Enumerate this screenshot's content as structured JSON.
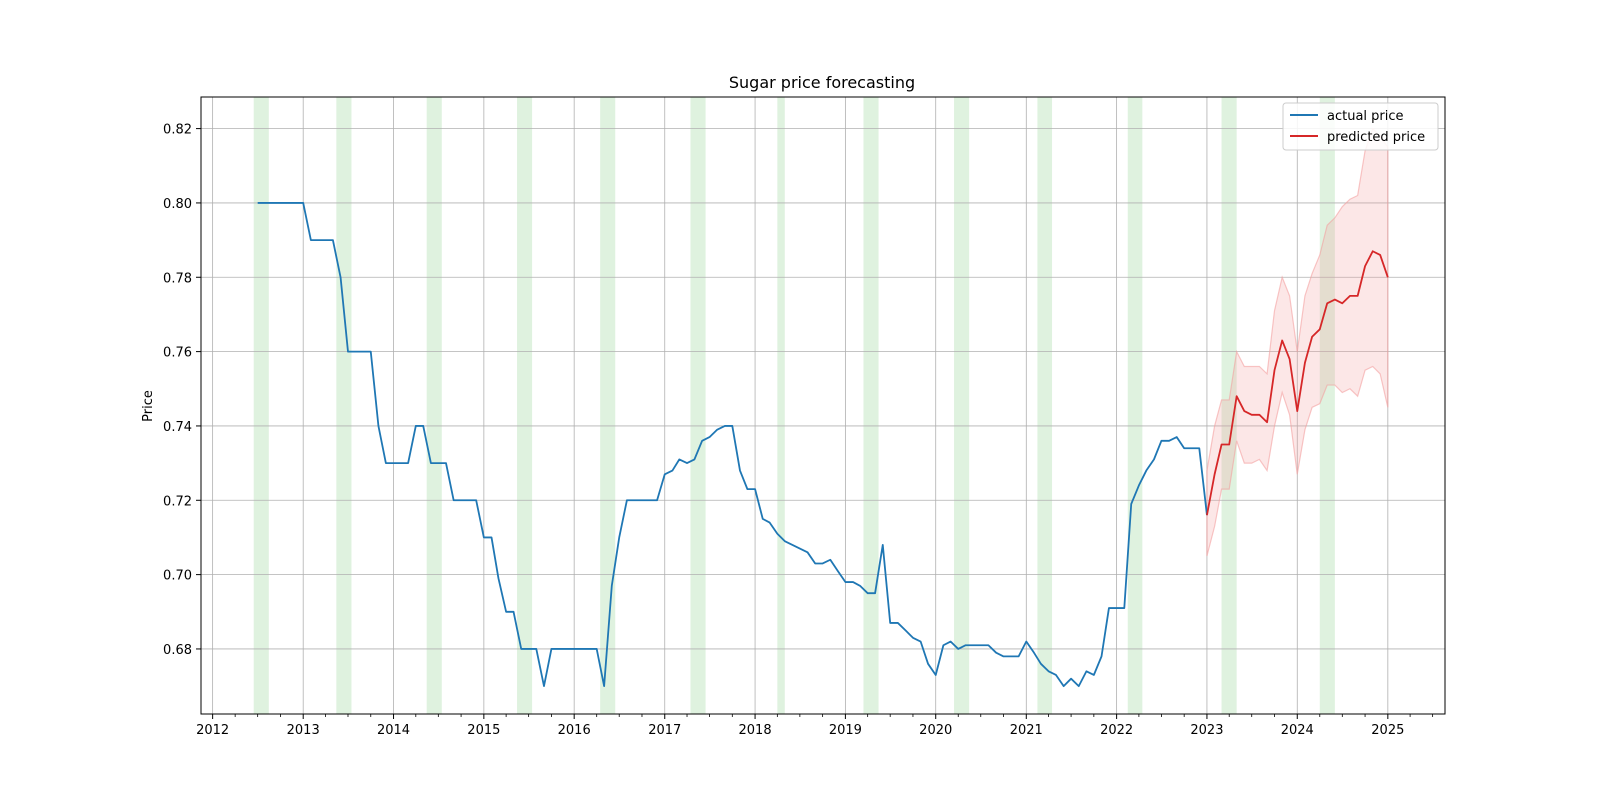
{
  "chart_data": {
    "type": "line",
    "title": "Sugar price forecasting",
    "xlabel": "",
    "ylabel": "Price",
    "x_axis_type": "date",
    "xlim": [
      "2011-11-15",
      "2025-08-20"
    ],
    "ylim": [
      0.6625,
      0.8285
    ],
    "grid": true,
    "legend_position": "top-right",
    "x_ticks": [
      "2012",
      "2013",
      "2014",
      "2015",
      "2016",
      "2017",
      "2018",
      "2019",
      "2020",
      "2021",
      "2022",
      "2023",
      "2024",
      "2025"
    ],
    "y_ticks": [
      "0.68",
      "0.70",
      "0.72",
      "0.74",
      "0.76",
      "0.78",
      "0.80",
      "0.82"
    ],
    "series": [
      {
        "name": "actual price",
        "color": "#1f77b4",
        "points": [
          [
            "2012-07-01",
            0.8
          ],
          [
            "2012-08-01",
            0.8
          ],
          [
            "2012-09-01",
            0.8
          ],
          [
            "2012-10-01",
            0.8
          ],
          [
            "2012-11-01",
            0.8
          ],
          [
            "2012-12-01",
            0.8
          ],
          [
            "2013-01-01",
            0.8
          ],
          [
            "2013-02-01",
            0.79
          ],
          [
            "2013-03-01",
            0.79
          ],
          [
            "2013-04-01",
            0.79
          ],
          [
            "2013-05-01",
            0.79
          ],
          [
            "2013-06-01",
            0.78
          ],
          [
            "2013-07-01",
            0.76
          ],
          [
            "2013-08-01",
            0.76
          ],
          [
            "2013-09-01",
            0.76
          ],
          [
            "2013-10-01",
            0.76
          ],
          [
            "2013-11-01",
            0.74
          ],
          [
            "2013-12-01",
            0.73
          ],
          [
            "2014-01-01",
            0.73
          ],
          [
            "2014-02-01",
            0.73
          ],
          [
            "2014-03-01",
            0.73
          ],
          [
            "2014-04-01",
            0.74
          ],
          [
            "2014-05-01",
            0.74
          ],
          [
            "2014-06-01",
            0.73
          ],
          [
            "2014-07-01",
            0.73
          ],
          [
            "2014-08-01",
            0.73
          ],
          [
            "2014-09-01",
            0.72
          ],
          [
            "2014-10-01",
            0.72
          ],
          [
            "2014-11-01",
            0.72
          ],
          [
            "2014-12-01",
            0.72
          ],
          [
            "2015-01-01",
            0.71
          ],
          [
            "2015-02-01",
            0.71
          ],
          [
            "2015-03-01",
            0.699
          ],
          [
            "2015-04-01",
            0.69
          ],
          [
            "2015-05-01",
            0.69
          ],
          [
            "2015-06-01",
            0.68
          ],
          [
            "2015-07-01",
            0.68
          ],
          [
            "2015-08-01",
            0.68
          ],
          [
            "2015-09-01",
            0.67
          ],
          [
            "2015-10-01",
            0.68
          ],
          [
            "2015-11-01",
            0.68
          ],
          [
            "2015-12-01",
            0.68
          ],
          [
            "2016-01-01",
            0.68
          ],
          [
            "2016-02-01",
            0.68
          ],
          [
            "2016-03-01",
            0.68
          ],
          [
            "2016-04-01",
            0.68
          ],
          [
            "2016-05-01",
            0.67
          ],
          [
            "2016-06-01",
            0.697
          ],
          [
            "2016-07-01",
            0.71
          ],
          [
            "2016-08-01",
            0.72
          ],
          [
            "2016-09-01",
            0.72
          ],
          [
            "2016-10-01",
            0.72
          ],
          [
            "2016-11-01",
            0.72
          ],
          [
            "2016-12-01",
            0.72
          ],
          [
            "2017-01-01",
            0.727
          ],
          [
            "2017-02-01",
            0.728
          ],
          [
            "2017-03-01",
            0.731
          ],
          [
            "2017-04-01",
            0.73
          ],
          [
            "2017-05-01",
            0.731
          ],
          [
            "2017-06-01",
            0.736
          ],
          [
            "2017-07-01",
            0.737
          ],
          [
            "2017-08-01",
            0.739
          ],
          [
            "2017-09-01",
            0.74
          ],
          [
            "2017-10-01",
            0.74
          ],
          [
            "2017-11-01",
            0.728
          ],
          [
            "2017-12-01",
            0.723
          ],
          [
            "2018-01-01",
            0.723
          ],
          [
            "2018-02-01",
            0.715
          ],
          [
            "2018-03-01",
            0.714
          ],
          [
            "2018-04-01",
            0.711
          ],
          [
            "2018-05-01",
            0.709
          ],
          [
            "2018-06-01",
            0.708
          ],
          [
            "2018-07-01",
            0.707
          ],
          [
            "2018-08-01",
            0.706
          ],
          [
            "2018-09-01",
            0.703
          ],
          [
            "2018-10-01",
            0.703
          ],
          [
            "2018-11-01",
            0.704
          ],
          [
            "2018-12-01",
            0.701
          ],
          [
            "2019-01-01",
            0.698
          ],
          [
            "2019-02-01",
            0.698
          ],
          [
            "2019-03-01",
            0.697
          ],
          [
            "2019-04-01",
            0.695
          ],
          [
            "2019-05-01",
            0.695
          ],
          [
            "2019-06-01",
            0.708
          ],
          [
            "2019-07-01",
            0.687
          ],
          [
            "2019-08-01",
            0.687
          ],
          [
            "2019-09-01",
            0.685
          ],
          [
            "2019-10-01",
            0.683
          ],
          [
            "2019-11-01",
            0.682
          ],
          [
            "2019-12-01",
            0.676
          ],
          [
            "2020-01-01",
            0.673
          ],
          [
            "2020-02-01",
            0.681
          ],
          [
            "2020-03-01",
            0.682
          ],
          [
            "2020-04-01",
            0.68
          ],
          [
            "2020-05-01",
            0.681
          ],
          [
            "2020-06-01",
            0.681
          ],
          [
            "2020-07-01",
            0.681
          ],
          [
            "2020-08-01",
            0.681
          ],
          [
            "2020-09-01",
            0.679
          ],
          [
            "2020-10-01",
            0.678
          ],
          [
            "2020-11-01",
            0.678
          ],
          [
            "2020-12-01",
            0.678
          ],
          [
            "2021-01-01",
            0.682
          ],
          [
            "2021-02-01",
            0.679
          ],
          [
            "2021-03-01",
            0.676
          ],
          [
            "2021-04-01",
            0.674
          ],
          [
            "2021-05-01",
            0.673
          ],
          [
            "2021-06-01",
            0.67
          ],
          [
            "2021-07-01",
            0.672
          ],
          [
            "2021-08-01",
            0.67
          ],
          [
            "2021-09-01",
            0.674
          ],
          [
            "2021-10-01",
            0.673
          ],
          [
            "2021-11-01",
            0.678
          ],
          [
            "2021-12-01",
            0.691
          ],
          [
            "2022-01-01",
            0.691
          ],
          [
            "2022-02-01",
            0.691
          ],
          [
            "2022-03-01",
            0.719
          ],
          [
            "2022-04-01",
            0.724
          ],
          [
            "2022-05-01",
            0.728
          ],
          [
            "2022-06-01",
            0.731
          ],
          [
            "2022-07-01",
            0.736
          ],
          [
            "2022-08-01",
            0.736
          ],
          [
            "2022-09-01",
            0.737
          ],
          [
            "2022-10-01",
            0.734
          ],
          [
            "2022-11-01",
            0.734
          ],
          [
            "2022-12-01",
            0.734
          ],
          [
            "2023-01-01",
            0.716
          ]
        ]
      },
      {
        "name": "predicted price",
        "color": "#d62728",
        "points": [
          [
            "2023-01-01",
            0.716
          ],
          [
            "2023-02-01",
            0.727
          ],
          [
            "2023-03-01",
            0.735
          ],
          [
            "2023-04-01",
            0.735
          ],
          [
            "2023-05-01",
            0.748
          ],
          [
            "2023-06-01",
            0.744
          ],
          [
            "2023-07-01",
            0.743
          ],
          [
            "2023-08-01",
            0.743
          ],
          [
            "2023-09-01",
            0.741
          ],
          [
            "2023-10-01",
            0.755
          ],
          [
            "2023-11-01",
            0.763
          ],
          [
            "2023-12-01",
            0.758
          ],
          [
            "2024-01-01",
            0.744
          ],
          [
            "2024-02-01",
            0.757
          ],
          [
            "2024-03-01",
            0.764
          ],
          [
            "2024-04-01",
            0.766
          ],
          [
            "2024-05-01",
            0.773
          ],
          [
            "2024-06-01",
            0.774
          ],
          [
            "2024-07-01",
            0.773
          ],
          [
            "2024-08-01",
            0.775
          ],
          [
            "2024-09-01",
            0.775
          ],
          [
            "2024-10-01",
            0.783
          ],
          [
            "2024-11-01",
            0.787
          ],
          [
            "2024-12-01",
            0.786
          ],
          [
            "2025-01-01",
            0.78
          ]
        ]
      }
    ],
    "confidence_band": {
      "series": "predicted price",
      "color": "#f4a0a0",
      "lower": [
        0.705,
        0.713,
        0.723,
        0.723,
        0.736,
        0.73,
        0.73,
        0.731,
        0.728,
        0.74,
        0.749,
        0.743,
        0.727,
        0.739,
        0.745,
        0.746,
        0.751,
        0.751,
        0.749,
        0.75,
        0.748,
        0.755,
        0.756,
        0.754,
        0.745
      ],
      "upper": [
        0.728,
        0.74,
        0.747,
        0.747,
        0.76,
        0.756,
        0.756,
        0.756,
        0.754,
        0.771,
        0.78,
        0.775,
        0.76,
        0.775,
        0.781,
        0.786,
        0.794,
        0.796,
        0.799,
        0.801,
        0.802,
        0.814,
        0.82,
        0.818,
        0.815
      ]
    },
    "shaded_periods": {
      "color": "#bfe5bf",
      "spans": [
        [
          "2012-06-15",
          "2012-08-15"
        ],
        [
          "2013-05-15",
          "2013-07-15"
        ],
        [
          "2014-05-15",
          "2014-07-15"
        ],
        [
          "2015-05-15",
          "2015-07-15"
        ],
        [
          "2016-04-15",
          "2016-06-15"
        ],
        [
          "2017-04-15",
          "2017-06-15"
        ],
        [
          "2018-04-01",
          "2018-05-01"
        ],
        [
          "2019-03-15",
          "2019-05-15"
        ],
        [
          "2020-03-15",
          "2020-05-15"
        ],
        [
          "2021-02-15",
          "2021-04-15"
        ],
        [
          "2022-02-15",
          "2022-04-15"
        ],
        [
          "2023-03-01",
          "2023-05-01"
        ],
        [
          "2024-04-01",
          "2024-06-01"
        ]
      ]
    }
  }
}
